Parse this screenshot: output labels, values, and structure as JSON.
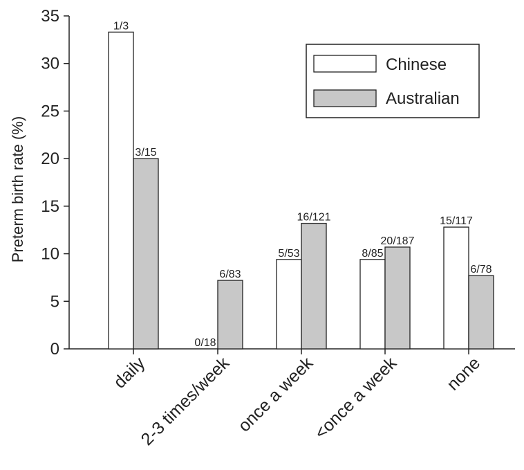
{
  "chart_data": {
    "type": "bar",
    "title": "",
    "xlabel": "",
    "ylabel": "Preterm birth rate (%)",
    "ylim": [
      0,
      35
    ],
    "yticks": [
      0,
      5,
      10,
      15,
      20,
      25,
      30,
      35
    ],
    "categories": [
      "daily",
      "2-3 times/week",
      "once a week",
      "<once a week",
      "none"
    ],
    "series": [
      {
        "name": "Chinese",
        "color": "#ffffff",
        "values": [
          33.3,
          0,
          9.4,
          9.4,
          12.8
        ],
        "labels": [
          "1/3",
          "0/18",
          "5/53",
          "8/85",
          "15/117"
        ]
      },
      {
        "name": "Australian",
        "color": "#c8c8c8",
        "values": [
          20.0,
          7.2,
          13.2,
          10.7,
          7.7
        ],
        "labels": [
          "3/15",
          "6/83",
          "16/121",
          "20/187",
          "6/78"
        ]
      }
    ],
    "legend": "top-right",
    "grid": false
  }
}
